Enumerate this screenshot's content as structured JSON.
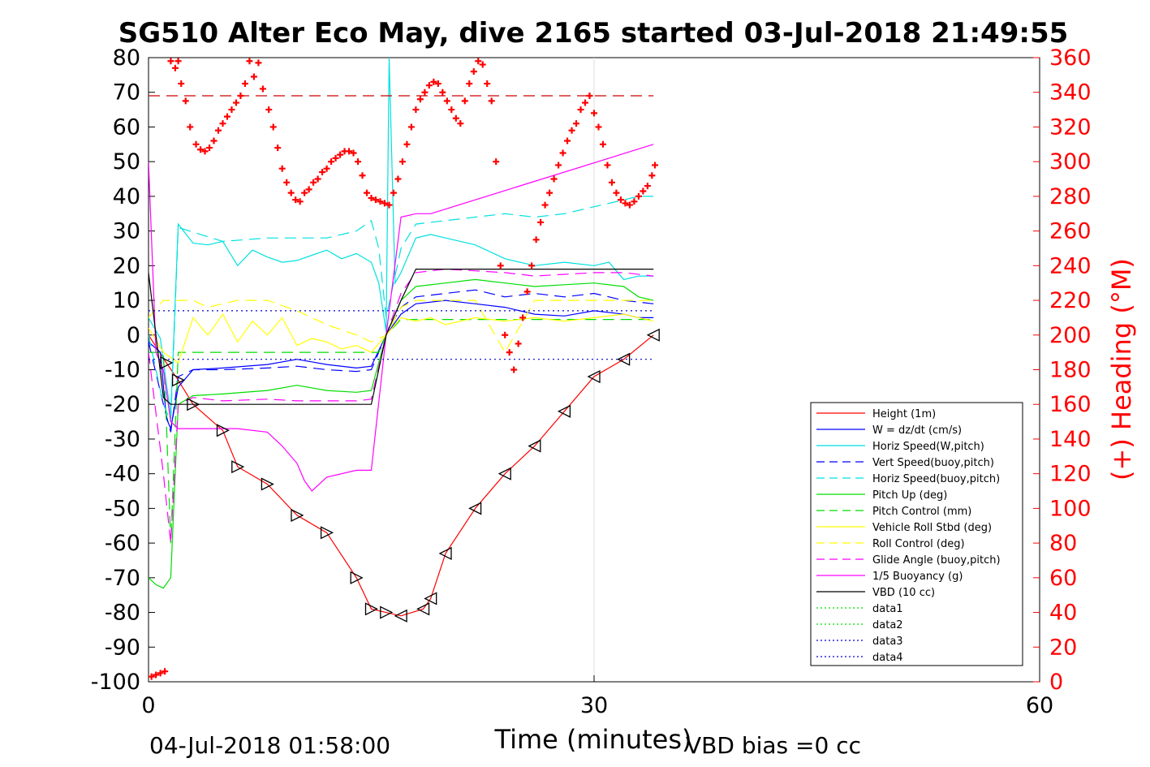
{
  "chart_data": {
    "type": "line",
    "title": "SG510 Alter Eco May, dive 2165 started 03-Jul-2018 21:49:55",
    "xlabel": "Time (minutes)",
    "ylabel_right": "(+) Heading (°M)",
    "footer_left": "04-Jul-2018 01:58:00",
    "footer_right": "VBD bias =0 cc",
    "xlim": [
      0,
      60
    ],
    "ylim": [
      -100,
      80
    ],
    "ylim_right": [
      0,
      360
    ],
    "x_ticks": [
      0,
      30,
      60
    ],
    "y_ticks": [
      80,
      70,
      60,
      50,
      40,
      30,
      20,
      10,
      0,
      -10,
      -20,
      -30,
      -40,
      -50,
      -60,
      -70,
      -80,
      -90,
      -100
    ],
    "y_ticks_right": [
      360,
      340,
      320,
      300,
      280,
      260,
      240,
      220,
      200,
      180,
      160,
      140,
      120,
      100,
      80,
      60,
      40,
      20,
      0
    ],
    "grid": "x-major-only",
    "legend_position": "bottom-right",
    "colors": {
      "red": "#ff0000",
      "blue": "#0000ff",
      "navy": "#0000cc",
      "cyan": "#00e0e0",
      "green": "#00dd00",
      "yellow": "#ffff00",
      "magenta": "#ff00ff",
      "black": "#000000"
    },
    "series": [
      {
        "name": "Height (1m)",
        "color": "#ff0000",
        "style": "solid",
        "x": [
          0,
          1.2,
          2,
          3,
          5,
          6,
          8,
          10,
          12,
          14,
          15,
          16,
          17,
          18.5,
          19,
          20,
          22,
          24,
          26,
          28,
          30,
          32,
          34
        ],
        "y": [
          0,
          -8,
          -13,
          -20,
          -27.5,
          -38,
          -43,
          -52,
          -57,
          -70,
          -79,
          -80,
          -81,
          -79,
          -76,
          -63,
          -50,
          -40,
          -32,
          -22,
          -12,
          -7,
          0
        ]
      },
      {
        "name": "W = dz/dt (cm/s)",
        "color": "#0000ff",
        "style": "solid",
        "x": [
          0,
          0.8,
          1.2,
          1.5,
          2,
          3,
          5,
          8,
          10,
          12,
          14,
          15,
          16,
          17,
          18,
          20,
          22,
          24,
          26,
          28,
          30,
          32,
          33,
          34
        ],
        "y": [
          -2,
          -5,
          -24,
          -27,
          -15,
          -10,
          -9.5,
          -8.5,
          -7,
          -8.5,
          -9.5,
          -9,
          0,
          6,
          9,
          10,
          9,
          8,
          6,
          5.5,
          7,
          6,
          5,
          5
        ]
      },
      {
        "name": "Horiz Speed(W,pitch)",
        "color": "#00e0e0",
        "style": "solid",
        "x": [
          0,
          0.8,
          1.2,
          1.5,
          2,
          3,
          4,
          5,
          6,
          7,
          8,
          9,
          10,
          11,
          12,
          13,
          14,
          15,
          15.5,
          16,
          16.2,
          16.6,
          17,
          18,
          19,
          20,
          22,
          24,
          26,
          28,
          30,
          31,
          32,
          33,
          34
        ],
        "y": [
          5,
          -1,
          -14,
          -23,
          32,
          26.5,
          26,
          27,
          20,
          24.5,
          22.5,
          21,
          21.5,
          23,
          24.5,
          22,
          23.5,
          21,
          15,
          1,
          80,
          15,
          18,
          28,
          29,
          28,
          26,
          22,
          20,
          21,
          20,
          21,
          16,
          17,
          17
        ]
      },
      {
        "name": "Vert Speed(buoy,pitch)",
        "color": "#0000ff",
        "style": "dashed",
        "x": [
          0,
          1,
          1.5,
          2,
          3,
          5,
          8,
          10,
          12,
          14,
          15,
          16,
          17,
          18,
          20,
          22,
          24,
          26,
          28,
          30,
          32,
          34
        ],
        "y": [
          -2,
          -20,
          -28,
          -12,
          -10,
          -10,
          -9.5,
          -9,
          -10,
          -10.5,
          -10,
          0,
          8,
          11,
          12,
          13,
          11,
          12,
          11,
          12,
          10,
          9
        ]
      },
      {
        "name": "Horiz Speed(buoy,pitch)",
        "color": "#00e0e0",
        "style": "dashed",
        "x": [
          0,
          1,
          1.5,
          2,
          5,
          8,
          10,
          12,
          14,
          15,
          15.5,
          16,
          17,
          18,
          20,
          22,
          24,
          26,
          28,
          30,
          32,
          33,
          34
        ],
        "y": [
          0,
          -20,
          -25,
          31,
          27,
          28,
          28,
          28,
          30,
          33,
          25,
          5,
          25,
          32,
          33,
          34,
          35,
          34,
          35,
          37,
          39,
          40,
          40
        ]
      },
      {
        "name": "Pitch Up (deg)",
        "color": "#00dd00",
        "style": "solid",
        "x": [
          0,
          0.5,
          1,
          1.5,
          2,
          3,
          5,
          8,
          10,
          12,
          14,
          15,
          16,
          17,
          18,
          20,
          22,
          24,
          26,
          28,
          30,
          32,
          33,
          34
        ],
        "y": [
          -70,
          -72,
          -73,
          -70,
          -20,
          -17.5,
          -17,
          -16,
          -14.5,
          -16,
          -16.5,
          -16,
          0,
          10,
          14,
          15,
          16,
          15,
          14,
          14.5,
          15,
          14,
          11,
          10
        ]
      },
      {
        "name": "Pitch Control (mm)",
        "color": "#00dd00",
        "style": "dashed",
        "x": [
          0,
          1,
          1.2,
          1.5,
          2,
          15,
          15.5,
          16,
          17,
          34
        ],
        "y": [
          -5,
          -5,
          -25,
          -60,
          -5,
          -5,
          -5,
          0,
          4.5,
          4.5
        ]
      },
      {
        "name": "Vehicle Roll Stbd (deg)",
        "color": "#ffff00",
        "style": "solid",
        "x": [
          0,
          1,
          2,
          3,
          4,
          5,
          6,
          7,
          8,
          9,
          10,
          11,
          12,
          13,
          14,
          15,
          16,
          17,
          18,
          19,
          20,
          22,
          24,
          26,
          28,
          30,
          32,
          34
        ],
        "y": [
          2,
          -5,
          -8,
          5,
          0,
          6,
          -2,
          4,
          0,
          5,
          -3,
          -1,
          -2,
          -4,
          -3,
          -5,
          0,
          5,
          4,
          5,
          3,
          5,
          4,
          5,
          4,
          5,
          6,
          4
        ]
      },
      {
        "name": "Roll Control (deg)",
        "color": "#ffff00",
        "style": "dashed",
        "x": [
          0,
          1,
          2,
          3,
          4,
          6,
          8,
          10,
          12,
          14,
          15,
          16,
          17,
          18,
          20,
          22,
          24,
          26,
          28,
          30,
          32,
          34
        ],
        "y": [
          5,
          10,
          10,
          10,
          8,
          10,
          10,
          7,
          3,
          0,
          -2,
          0,
          8,
          10,
          10,
          10,
          -5,
          10,
          10,
          10,
          10,
          10
        ]
      },
      {
        "name": "Glide Angle (buoy,pitch)",
        "color": "#ff00ff",
        "style": "dashed",
        "x": [
          0,
          1,
          1.5,
          2,
          3,
          5,
          8,
          10,
          12,
          14,
          15,
          16,
          17,
          18,
          20,
          22,
          24,
          26,
          28,
          30,
          32,
          34
        ],
        "y": [
          -5,
          -40,
          -60,
          -20,
          -18,
          -19,
          -18.5,
          -19,
          -19,
          -19,
          -18.5,
          0,
          12,
          18,
          19,
          18.5,
          18,
          17,
          17.5,
          18,
          18,
          17
        ]
      },
      {
        "name": "1/5 Buoyancy (g)",
        "color": "#ff00ff",
        "style": "solid",
        "x": [
          0,
          0.5,
          1,
          1.5,
          2,
          3,
          6,
          8,
          9,
          10,
          10.5,
          11,
          12,
          14,
          15,
          16,
          17,
          18,
          19,
          34
        ],
        "y": [
          50,
          -5,
          -10,
          -25,
          -27,
          -27,
          -27,
          -28,
          -32,
          -37,
          -42,
          -45,
          -41,
          -39,
          -39,
          0,
          34,
          35,
          35,
          55
        ]
      },
      {
        "name": "VBD (10 cc)",
        "color": "#000000",
        "style": "solid",
        "x": [
          0,
          1,
          1.5,
          2,
          15,
          16,
          17,
          18,
          34
        ],
        "y": [
          18,
          -18,
          -20,
          -20,
          -20,
          0,
          10,
          19,
          19
        ]
      },
      {
        "name": "data1",
        "color": "#00dd00",
        "style": "dotted",
        "x": [],
        "y": []
      },
      {
        "name": "data2",
        "color": "#00dd00",
        "style": "dotted",
        "x": [],
        "y": []
      },
      {
        "name": "data3",
        "color": "#0000cc",
        "style": "dotted",
        "x": [
          0,
          34
        ],
        "y": [
          -7,
          -7
        ]
      },
      {
        "name": "data4",
        "color": "#0000cc",
        "style": "dotted",
        "x": [
          0,
          34
        ],
        "y": [
          7,
          7
        ]
      }
    ],
    "extra_lines": [
      {
        "color": "#cc0000",
        "style": "dashed",
        "axis": "right",
        "x": [
          0,
          34
        ],
        "y": [
          338,
          338
        ]
      }
    ],
    "heading_markers": {
      "color": "#ff0000",
      "marker": "+",
      "axis": "right",
      "x": [
        0.2,
        0.5,
        0.8,
        1.1,
        1.5,
        1.8,
        2.0,
        2.2,
        2.5,
        2.8,
        3.2,
        3.5,
        3.8,
        4.1,
        4.4,
        4.7,
        5.0,
        5.3,
        5.6,
        5.9,
        6.2,
        6.5,
        6.8,
        7.1,
        7.4,
        7.7,
        8.1,
        8.4,
        8.7,
        9.0,
        9.3,
        9.6,
        9.9,
        10.2,
        10.5,
        10.8,
        11.1,
        11.4,
        11.7,
        12.0,
        12.3,
        12.6,
        12.9,
        13.2,
        13.5,
        13.8,
        14.1,
        14.4,
        14.7,
        15.0,
        15.3,
        15.6,
        15.9,
        16.2,
        16.5,
        16.8,
        17.1,
        17.4,
        17.7,
        18.0,
        18.3,
        18.6,
        18.9,
        19.2,
        19.5,
        19.8,
        20.1,
        20.4,
        20.7,
        21.0,
        21.3,
        21.6,
        21.9,
        22.2,
        22.5,
        22.8,
        23.1,
        23.4,
        23.7,
        24.0,
        24.3,
        24.6,
        24.9,
        25.2,
        25.5,
        25.8,
        26.1,
        26.4,
        26.7,
        27.0,
        27.3,
        27.6,
        27.9,
        28.2,
        28.5,
        28.8,
        29.1,
        29.4,
        29.7,
        30.0,
        30.3,
        30.6,
        30.9,
        31.2,
        31.5,
        31.8,
        32.1,
        32.4,
        32.7,
        33.0,
        33.3,
        33.6,
        33.9,
        34.1
      ],
      "y": [
        3,
        4,
        5,
        6,
        358,
        354,
        358,
        345,
        335,
        320,
        310,
        307,
        306,
        308,
        312,
        318,
        322,
        326,
        330,
        334,
        338,
        345,
        358,
        349,
        357,
        342,
        330,
        320,
        308,
        296,
        288,
        282,
        278,
        277,
        282,
        284,
        288,
        290,
        294,
        296,
        300,
        302,
        304,
        306,
        306,
        305,
        300,
        292,
        282,
        279,
        278,
        277,
        276,
        275,
        282,
        290,
        300,
        310,
        320,
        330,
        336,
        340,
        344,
        346,
        345,
        340,
        335,
        330,
        325,
        322,
        335,
        345,
        352,
        358,
        356,
        345,
        335,
        300,
        240,
        200,
        190,
        180,
        195,
        210,
        225,
        240,
        255,
        265,
        275,
        282,
        290,
        298,
        305,
        312,
        318,
        322,
        330,
        334,
        338,
        328,
        320,
        310,
        298,
        288,
        282,
        278,
        276,
        275,
        277,
        280,
        283,
        286,
        292,
        298
      ]
    }
  }
}
